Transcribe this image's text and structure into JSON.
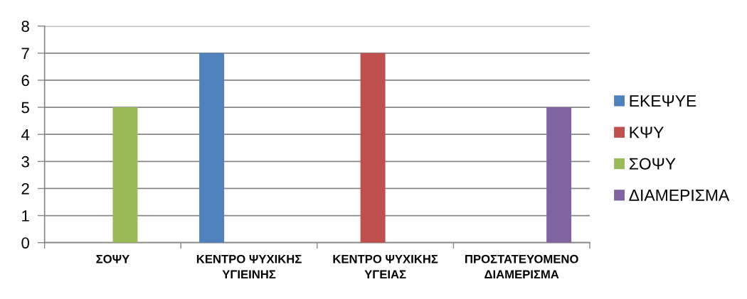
{
  "chart_data": {
    "type": "bar",
    "categories": [
      "ΣΟΨΥ",
      "ΚΕΝΤΡΟ ΨΥΧΙΚΗΣ ΥΓΙΕΙΝΗΣ",
      "ΚΕΝΤΡΟ ΨΥΧΙΚΗΣ ΥΓΕΙΑΣ",
      "ΠΡΟΣΤΑΤΕΥΟΜΕΝΟ ΔΙΑΜΕΡΙΣΜΑ"
    ],
    "series": [
      {
        "name": "ΕΚΕΨΥΕ",
        "color": "#4f81bd",
        "values": [
          null,
          7,
          null,
          null
        ]
      },
      {
        "name": "ΚΨΥ",
        "color": "#c0504d",
        "values": [
          null,
          null,
          7,
          null
        ]
      },
      {
        "name": "ΣΟΨΥ",
        "color": "#9bbb59",
        "values": [
          5,
          null,
          null,
          null
        ]
      },
      {
        "name": "ΔΙΑΜΕΡΙΣΜΑ",
        "color": "#8064a2",
        "values": [
          null,
          null,
          null,
          5
        ]
      }
    ],
    "ylim": [
      0,
      8
    ],
    "yticks": [
      0,
      1,
      2,
      3,
      4,
      5,
      6,
      7,
      8
    ],
    "grid": "y",
    "legend": "right"
  }
}
